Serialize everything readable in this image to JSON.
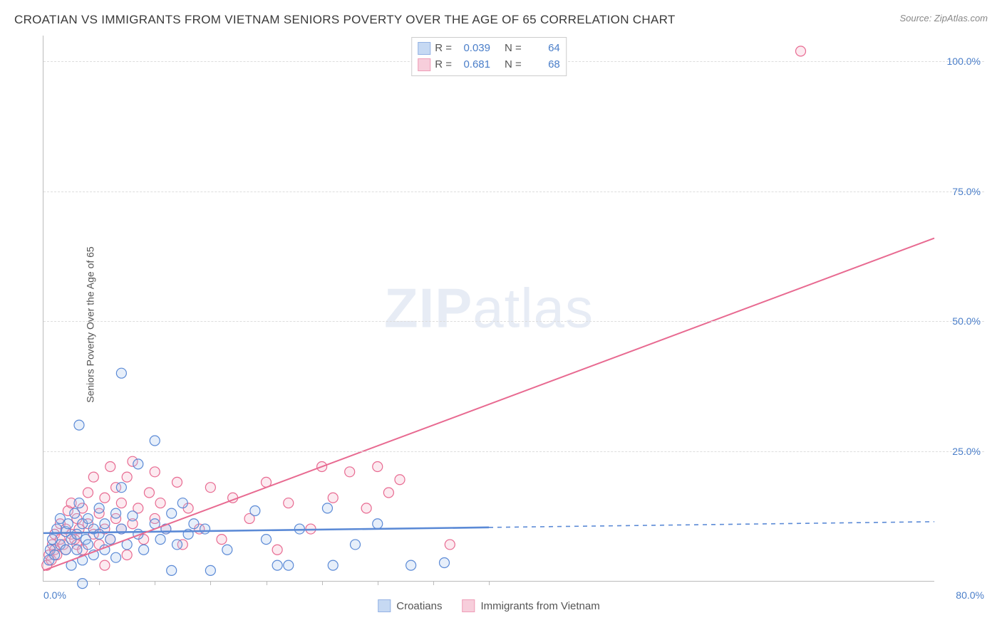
{
  "title": "CROATIAN VS IMMIGRANTS FROM VIETNAM SENIORS POVERTY OVER THE AGE OF 65 CORRELATION CHART",
  "source": "Source: ZipAtlas.com",
  "y_axis_label": "Seniors Poverty Over the Age of 65",
  "watermark_zip": "ZIP",
  "watermark_atlas": "atlas",
  "chart": {
    "type": "scatter",
    "xlim": [
      0,
      80
    ],
    "ylim": [
      0,
      105
    ],
    "x_ticks": [
      0,
      5,
      10,
      15,
      20,
      25,
      30,
      35,
      40,
      80
    ],
    "x_tick_labels": {
      "0": "0.0%",
      "80": "80.0%"
    },
    "y_ticks": [
      25,
      50,
      75,
      100
    ],
    "y_tick_labels": {
      "25": "25.0%",
      "50": "50.0%",
      "75": "75.0%",
      "100": "100.0%"
    },
    "background_color": "#ffffff",
    "grid_color": "#dddddd",
    "axis_color": "#bbbbbb",
    "tick_label_color": "#4a7ec9",
    "marker_radius": 7,
    "marker_stroke_width": 1.2,
    "marker_fill_opacity": 0.28,
    "trend_line_width": 2
  },
  "series": {
    "croatians": {
      "label": "Croatians",
      "color_stroke": "#5b8ad6",
      "color_fill": "#a8c5ee",
      "R": "0.039",
      "N": "64",
      "trend": {
        "x1": 0,
        "y1": 9.2,
        "x2": 40,
        "y2": 10.3,
        "dash_x2": 80,
        "dash_y2": 11.4
      },
      "points": [
        [
          0.5,
          4
        ],
        [
          0.6,
          6
        ],
        [
          0.8,
          8
        ],
        [
          1.0,
          5
        ],
        [
          1.2,
          10
        ],
        [
          1.5,
          7
        ],
        [
          1.5,
          12
        ],
        [
          2.0,
          6
        ],
        [
          2.0,
          9.5
        ],
        [
          2.2,
          11
        ],
        [
          2.5,
          8
        ],
        [
          2.5,
          3
        ],
        [
          2.8,
          13
        ],
        [
          3.0,
          9
        ],
        [
          3.0,
          6
        ],
        [
          3.2,
          15
        ],
        [
          3.5,
          11
        ],
        [
          3.5,
          4
        ],
        [
          3.8,
          8
        ],
        [
          4.0,
          12
        ],
        [
          4.0,
          7
        ],
        [
          4.5,
          10
        ],
        [
          4.5,
          5
        ],
        [
          5.0,
          14
        ],
        [
          5.0,
          9
        ],
        [
          5.5,
          11
        ],
        [
          5.5,
          6
        ],
        [
          3.2,
          30
        ],
        [
          6.0,
          8
        ],
        [
          6.5,
          13
        ],
        [
          6.5,
          4.5
        ],
        [
          7.0,
          10
        ],
        [
          7.0,
          18
        ],
        [
          7.5,
          7
        ],
        [
          8.0,
          12.5
        ],
        [
          8.5,
          9
        ],
        [
          8.5,
          22.5
        ],
        [
          9.0,
          6
        ],
        [
          7.0,
          40
        ],
        [
          10.0,
          11
        ],
        [
          10.0,
          27
        ],
        [
          10.5,
          8
        ],
        [
          11.0,
          10
        ],
        [
          11.5,
          13
        ],
        [
          12.0,
          7
        ],
        [
          12.5,
          15
        ],
        [
          13.0,
          9
        ],
        [
          13.5,
          11
        ],
        [
          3.5,
          -0.5
        ],
        [
          14.5,
          10
        ],
        [
          15.0,
          2
        ],
        [
          11.5,
          2
        ],
        [
          16.5,
          6
        ],
        [
          19.0,
          13.5
        ],
        [
          20.0,
          8
        ],
        [
          21.0,
          3
        ],
        [
          22.0,
          3
        ],
        [
          23.0,
          10
        ],
        [
          25.5,
          14
        ],
        [
          26.0,
          3
        ],
        [
          28.0,
          7
        ],
        [
          30.0,
          11
        ],
        [
          33.0,
          3
        ],
        [
          36.0,
          3.5
        ]
      ]
    },
    "vietnam": {
      "label": "Immigrants from Vietnam",
      "color_stroke": "#e86a91",
      "color_fill": "#f4b5c8",
      "R": "0.681",
      "N": "68",
      "trend": {
        "x1": 0,
        "y1": 2,
        "x2": 80,
        "y2": 66
      },
      "points": [
        [
          0.3,
          3
        ],
        [
          0.5,
          5
        ],
        [
          0.7,
          4
        ],
        [
          0.8,
          7
        ],
        [
          1.0,
          6
        ],
        [
          1.0,
          9
        ],
        [
          1.2,
          5
        ],
        [
          1.5,
          8
        ],
        [
          1.5,
          11
        ],
        [
          1.8,
          7
        ],
        [
          2.0,
          10
        ],
        [
          2.0,
          6
        ],
        [
          2.2,
          13.5
        ],
        [
          2.5,
          9
        ],
        [
          2.5,
          15
        ],
        [
          2.8,
          8
        ],
        [
          3.0,
          12
        ],
        [
          3.0,
          7
        ],
        [
          3.2,
          10
        ],
        [
          3.5,
          6
        ],
        [
          3.5,
          14
        ],
        [
          4.0,
          11
        ],
        [
          4.0,
          17
        ],
        [
          4.5,
          9
        ],
        [
          4.5,
          20
        ],
        [
          5.0,
          13
        ],
        [
          5.0,
          7
        ],
        [
          5.5,
          16
        ],
        [
          5.5,
          10
        ],
        [
          6.0,
          22
        ],
        [
          6.0,
          8
        ],
        [
          6.5,
          12
        ],
        [
          6.5,
          18
        ],
        [
          7.0,
          10
        ],
        [
          7.0,
          15
        ],
        [
          7.5,
          20
        ],
        [
          8.0,
          11
        ],
        [
          8.0,
          23
        ],
        [
          8.5,
          14
        ],
        [
          9.0,
          8
        ],
        [
          9.5,
          17
        ],
        [
          10.0,
          12
        ],
        [
          5.5,
          3
        ],
        [
          10.0,
          21
        ],
        [
          10.5,
          15
        ],
        [
          11.0,
          10
        ],
        [
          12.0,
          19
        ],
        [
          12.5,
          7
        ],
        [
          13.0,
          14
        ],
        [
          14.0,
          10
        ],
        [
          15.0,
          18
        ],
        [
          16.0,
          8
        ],
        [
          17.0,
          16
        ],
        [
          7.5,
          5
        ],
        [
          18.5,
          12
        ],
        [
          20.0,
          19
        ],
        [
          21.0,
          6
        ],
        [
          22.0,
          15
        ],
        [
          24.0,
          10
        ],
        [
          25.0,
          22
        ],
        [
          26.0,
          16
        ],
        [
          27.5,
          21
        ],
        [
          29.0,
          14
        ],
        [
          30.0,
          22
        ],
        [
          31.0,
          17
        ],
        [
          32.0,
          19.5
        ],
        [
          36.5,
          7
        ],
        [
          68.0,
          102
        ]
      ]
    }
  },
  "legend_top": {
    "r_label": "R =",
    "n_label": "N ="
  }
}
